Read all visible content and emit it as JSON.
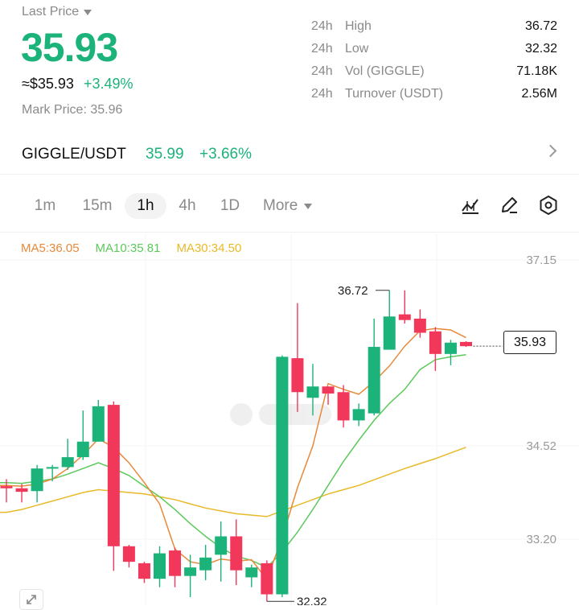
{
  "header": {
    "last_price_label": "Last Price",
    "last_price": "35.93",
    "usd_price": "≈$35.93",
    "change_pct": "+3.49%",
    "mark_price": "Mark Price: 35.96"
  },
  "stats": [
    {
      "prefix": "24h",
      "label": "High",
      "value": "36.72"
    },
    {
      "prefix": "24h",
      "label": "Low",
      "value": "32.32"
    },
    {
      "prefix": "24h",
      "label": "Vol (GIGGLE)",
      "value": "71.18K"
    },
    {
      "prefix": "24h",
      "label": "Turnover (USDT)",
      "value": "2.56M"
    }
  ],
  "pair": {
    "name": "GIGGLE/USDT",
    "price": "35.99",
    "change": "+3.66%"
  },
  "timeframes": {
    "items": [
      "1m",
      "15m",
      "1h",
      "4h",
      "1D"
    ],
    "more": "More",
    "active": "1h"
  },
  "toolbar_icons": [
    "indicator-icon",
    "draw-icon",
    "settings-icon"
  ],
  "ma": {
    "ma5": "MA5:36.05",
    "ma10": "MA10:35.81",
    "ma30": "MA30:34.50"
  },
  "chart_data": {
    "type": "candlestick",
    "y_ticks": [
      "37.15",
      "34.52",
      "33.20"
    ],
    "high_label": "36.72",
    "low_label": "32.32",
    "current_price_tag": "35.93",
    "colors": {
      "up": "#1bb37a",
      "down": "#f2385a",
      "ma5": "#e8893a",
      "ma10": "#5bc95b",
      "ma30": "#e8b928"
    },
    "candles": [
      {
        "o": 33.95,
        "h": 34.05,
        "l": 33.72,
        "c": 33.92
      },
      {
        "o": 33.92,
        "h": 33.98,
        "l": 33.72,
        "c": 33.87
      },
      {
        "o": 33.88,
        "h": 34.25,
        "l": 33.72,
        "c": 34.2
      },
      {
        "o": 34.2,
        "h": 34.25,
        "l": 34.02,
        "c": 34.22
      },
      {
        "o": 34.22,
        "h": 34.62,
        "l": 34.18,
        "c": 34.36
      },
      {
        "o": 34.36,
        "h": 35.02,
        "l": 34.32,
        "c": 34.58
      },
      {
        "o": 34.58,
        "h": 35.17,
        "l": 34.58,
        "c": 35.08
      },
      {
        "o": 35.1,
        "h": 35.15,
        "l": 32.75,
        "c": 33.1
      },
      {
        "o": 33.1,
        "h": 33.12,
        "l": 32.8,
        "c": 32.88
      },
      {
        "o": 32.86,
        "h": 32.88,
        "l": 32.58,
        "c": 32.64
      },
      {
        "o": 32.64,
        "h": 33.1,
        "l": 32.52,
        "c": 33.0
      },
      {
        "o": 33.04,
        "h": 33.08,
        "l": 32.52,
        "c": 32.68
      },
      {
        "o": 32.68,
        "h": 32.98,
        "l": 32.38,
        "c": 32.8
      },
      {
        "o": 32.76,
        "h": 33.12,
        "l": 32.62,
        "c": 32.94
      },
      {
        "o": 32.98,
        "h": 33.45,
        "l": 32.6,
        "c": 33.24
      },
      {
        "o": 33.24,
        "h": 33.48,
        "l": 32.55,
        "c": 32.76
      },
      {
        "o": 32.66,
        "h": 32.84,
        "l": 32.52,
        "c": 32.8
      },
      {
        "o": 32.86,
        "h": 32.9,
        "l": 32.32,
        "c": 32.42
      },
      {
        "o": 32.42,
        "h": 35.8,
        "l": 32.38,
        "c": 35.78
      },
      {
        "o": 35.76,
        "h": 36.54,
        "l": 35.0,
        "c": 35.28
      },
      {
        "o": 35.2,
        "h": 35.68,
        "l": 34.95,
        "c": 35.36
      },
      {
        "o": 35.36,
        "h": 35.36,
        "l": 35.1,
        "c": 35.26
      },
      {
        "o": 35.28,
        "h": 35.38,
        "l": 34.78,
        "c": 34.88
      },
      {
        "o": 34.88,
        "h": 35.12,
        "l": 34.8,
        "c": 35.04
      },
      {
        "o": 34.98,
        "h": 36.32,
        "l": 34.95,
        "c": 35.92
      },
      {
        "o": 35.88,
        "h": 36.72,
        "l": 35.88,
        "c": 36.35
      },
      {
        "o": 36.38,
        "h": 36.72,
        "l": 36.25,
        "c": 36.3
      },
      {
        "o": 36.32,
        "h": 36.45,
        "l": 36.05,
        "c": 36.12
      },
      {
        "o": 36.14,
        "h": 36.2,
        "l": 35.58,
        "c": 35.82
      },
      {
        "o": 35.82,
        "h": 36.02,
        "l": 35.66,
        "c": 35.98
      },
      {
        "o": 35.99,
        "h": 36.0,
        "l": 35.92,
        "c": 35.93
      }
    ],
    "ma5_values": [
      33.96,
      33.95,
      33.98,
      34.05,
      34.2,
      34.39,
      34.62,
      34.5,
      34.28,
      34.0,
      33.7,
      33.06,
      32.88,
      32.84,
      32.92,
      32.89,
      32.91,
      32.63,
      33.22,
      33.93,
      34.52,
      35.4,
      35.32,
      35.25,
      35.43,
      35.65,
      35.93,
      36.15,
      36.18,
      36.16,
      36.05
    ],
    "ma10_values": [
      34.0,
      33.99,
      34.02,
      34.05,
      34.12,
      34.2,
      34.28,
      34.2,
      34.1,
      33.95,
      33.8,
      33.62,
      33.42,
      33.24,
      33.08,
      32.96,
      32.9,
      32.8,
      33.02,
      33.3,
      33.62,
      33.96,
      34.3,
      34.6,
      34.88,
      35.12,
      35.32,
      35.6,
      35.74,
      35.78,
      35.81
    ],
    "ma30_values": [
      33.58,
      33.62,
      33.68,
      33.74,
      33.8,
      33.86,
      33.9,
      33.88,
      33.86,
      33.84,
      33.8,
      33.76,
      33.7,
      33.64,
      33.6,
      33.56,
      33.54,
      33.52,
      33.6,
      33.68,
      33.76,
      33.84,
      33.9,
      33.96,
      34.04,
      34.12,
      34.2,
      34.27,
      34.34,
      34.42,
      34.5
    ]
  }
}
